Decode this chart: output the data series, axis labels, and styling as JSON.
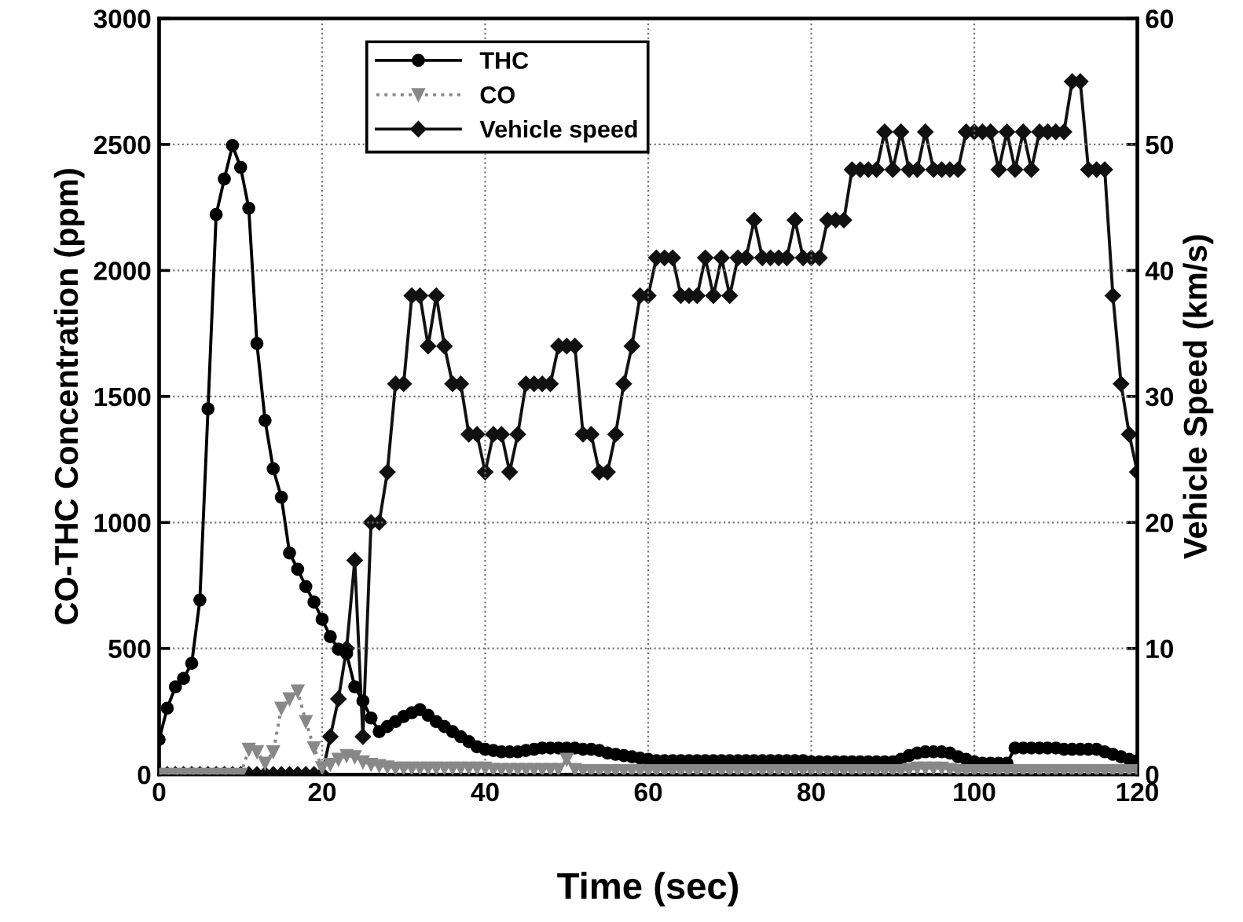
{
  "chart_data": {
    "type": "line",
    "xlabel": "Time (sec)",
    "ylabel": "CO-THC Concentration (ppm)",
    "y2label": "Vehicle Speed (km/s)",
    "x": [
      0,
      1,
      2,
      3,
      4,
      5,
      6,
      7,
      8,
      9,
      10,
      11,
      12,
      13,
      14,
      15,
      16,
      17,
      18,
      19,
      20,
      21,
      22,
      23,
      24,
      25,
      26,
      27,
      28,
      29,
      30,
      31,
      32,
      33,
      34,
      35,
      36,
      37,
      38,
      39,
      40,
      41,
      42,
      43,
      44,
      45,
      46,
      47,
      48,
      49,
      50,
      51,
      52,
      53,
      54,
      55,
      56,
      57,
      58,
      59,
      60,
      61,
      62,
      63,
      64,
      65,
      66,
      67,
      68,
      69,
      70,
      71,
      72,
      73,
      74,
      75,
      76,
      77,
      78,
      79,
      80,
      81,
      82,
      83,
      84,
      85,
      86,
      87,
      88,
      89,
      90,
      91,
      92,
      93,
      94,
      95,
      96,
      97,
      98,
      99,
      100,
      101,
      102,
      103,
      104,
      105,
      106,
      107,
      108,
      109,
      110,
      111,
      112,
      113,
      114,
      115,
      116,
      117,
      118,
      119,
      120
    ],
    "series": [
      {
        "name": "THC",
        "color": "#000000",
        "marker": "circle",
        "line_style": "solid",
        "values": [
          139,
          263,
          348,
          381,
          441,
          692,
          1451,
          2222,
          2363,
          2496,
          2409,
          2247,
          1710,
          1405,
          1213,
          1100,
          879,
          814,
          746,
          684,
          616,
          547,
          497,
          480,
          348,
          292,
          224,
          170,
          190,
          210,
          230,
          245,
          257,
          235,
          210,
          190,
          170,
          150,
          130,
          110,
          100,
          95,
          90,
          90,
          90,
          95,
          100,
          105,
          105,
          105,
          105,
          105,
          100,
          100,
          95,
          85,
          80,
          75,
          70,
          65,
          60,
          55,
          55,
          55,
          55,
          55,
          55,
          55,
          55,
          55,
          55,
          55,
          55,
          55,
          55,
          55,
          55,
          55,
          55,
          55,
          50,
          50,
          50,
          50,
          50,
          50,
          50,
          50,
          50,
          50,
          50,
          60,
          75,
          85,
          90,
          90,
          90,
          85,
          70,
          60,
          50,
          45,
          45,
          45,
          45,
          105,
          105,
          105,
          105,
          105,
          105,
          100,
          100,
          100,
          100,
          100,
          90,
          80,
          70,
          60,
          55
        ]
      },
      {
        "name": "CO",
        "color": "#888888",
        "marker": "triangle",
        "line_style": "dotted",
        "values": [
          0,
          0,
          0,
          0,
          0,
          0,
          0,
          0,
          0,
          0,
          0,
          100,
          90,
          45,
          90,
          263,
          300,
          331,
          210,
          106,
          27,
          40,
          60,
          75,
          70,
          50,
          40,
          35,
          30,
          25,
          25,
          25,
          25,
          25,
          25,
          25,
          25,
          25,
          25,
          25,
          25,
          20,
          20,
          20,
          20,
          20,
          20,
          20,
          20,
          20,
          60,
          20,
          15,
          15,
          15,
          15,
          15,
          15,
          15,
          15,
          15,
          15,
          15,
          15,
          15,
          15,
          15,
          15,
          15,
          15,
          15,
          15,
          15,
          15,
          15,
          15,
          15,
          15,
          15,
          15,
          15,
          15,
          15,
          15,
          15,
          15,
          15,
          15,
          15,
          15,
          15,
          15,
          20,
          25,
          25,
          25,
          25,
          20,
          15,
          15,
          15,
          15,
          15,
          15,
          15,
          15,
          15,
          15,
          15,
          15,
          15,
          15,
          15,
          15,
          15,
          15,
          15,
          15,
          15,
          15,
          15
        ]
      },
      {
        "name": "Vehicle speed",
        "color": "#111111",
        "marker": "diamond",
        "line_style": "solid",
        "axis": "y2",
        "values": [
          0,
          0,
          0,
          0,
          0,
          0,
          0,
          0,
          0,
          0,
          0,
          0,
          0,
          0,
          0,
          0,
          0,
          0,
          0,
          0,
          0,
          3,
          6,
          10,
          17,
          3,
          20,
          20,
          24,
          31,
          31,
          38,
          38,
          34,
          38,
          34,
          31,
          31,
          27,
          27,
          24,
          27,
          27,
          24,
          27,
          31,
          31,
          31,
          31,
          34,
          34,
          34,
          27,
          27,
          24,
          24,
          27,
          31,
          34,
          38,
          38,
          41,
          41,
          41,
          38,
          38,
          38,
          41,
          38,
          41,
          38,
          41,
          41,
          44,
          41,
          41,
          41,
          41,
          44,
          41,
          41,
          41,
          44,
          44,
          44,
          48,
          48,
          48,
          48,
          51,
          48,
          51,
          48,
          48,
          51,
          48,
          48,
          48,
          48,
          51,
          51,
          51,
          51,
          48,
          51,
          48,
          51,
          48,
          51,
          51,
          51,
          51,
          55,
          55,
          48,
          48,
          48,
          38,
          31,
          27,
          24
        ]
      }
    ],
    "xlim": [
      0,
      120
    ],
    "xticks": [
      0,
      20,
      40,
      60,
      80,
      100,
      120
    ],
    "ylim": [
      0,
      3000
    ],
    "yticks": [
      0,
      500,
      1000,
      1500,
      2000,
      2500,
      3000
    ],
    "y2lim": [
      0,
      60
    ],
    "y2ticks": [
      0,
      10,
      20,
      30,
      40,
      50,
      60
    ],
    "grid": true,
    "legend": "top"
  }
}
